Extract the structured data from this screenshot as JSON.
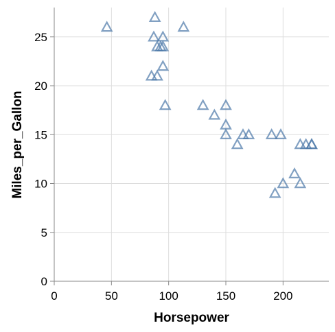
{
  "chart_data": {
    "type": "scatter",
    "mark": "triangle-up",
    "xlabel": "Horsepower",
    "ylabel": "Miles_per_Gallon",
    "xlim": [
      0,
      240
    ],
    "ylim": [
      0,
      28
    ],
    "xticks": [
      "0",
      "50",
      "100",
      "150",
      "200"
    ],
    "yticks": [
      "0",
      "5",
      "10",
      "15",
      "20",
      "25"
    ],
    "grid": true,
    "color": "#4c78a8",
    "points": [
      {
        "x": 46,
        "y": 26
      },
      {
        "x": 88,
        "y": 27
      },
      {
        "x": 87,
        "y": 25
      },
      {
        "x": 95,
        "y": 25
      },
      {
        "x": 90,
        "y": 24
      },
      {
        "x": 93,
        "y": 24
      },
      {
        "x": 95,
        "y": 24
      },
      {
        "x": 113,
        "y": 26
      },
      {
        "x": 95,
        "y": 22
      },
      {
        "x": 85,
        "y": 21
      },
      {
        "x": 90,
        "y": 21
      },
      {
        "x": 97,
        "y": 18
      },
      {
        "x": 130,
        "y": 18
      },
      {
        "x": 140,
        "y": 17
      },
      {
        "x": 150,
        "y": 18
      },
      {
        "x": 150,
        "y": 16
      },
      {
        "x": 150,
        "y": 15
      },
      {
        "x": 160,
        "y": 14
      },
      {
        "x": 165,
        "y": 15
      },
      {
        "x": 170,
        "y": 15
      },
      {
        "x": 190,
        "y": 15
      },
      {
        "x": 198,
        "y": 15
      },
      {
        "x": 215,
        "y": 14
      },
      {
        "x": 220,
        "y": 14
      },
      {
        "x": 225,
        "y": 14
      },
      {
        "x": 225,
        "y": 14
      },
      {
        "x": 210,
        "y": 11
      },
      {
        "x": 200,
        "y": 10
      },
      {
        "x": 215,
        "y": 10
      },
      {
        "x": 193,
        "y": 9
      }
    ]
  }
}
